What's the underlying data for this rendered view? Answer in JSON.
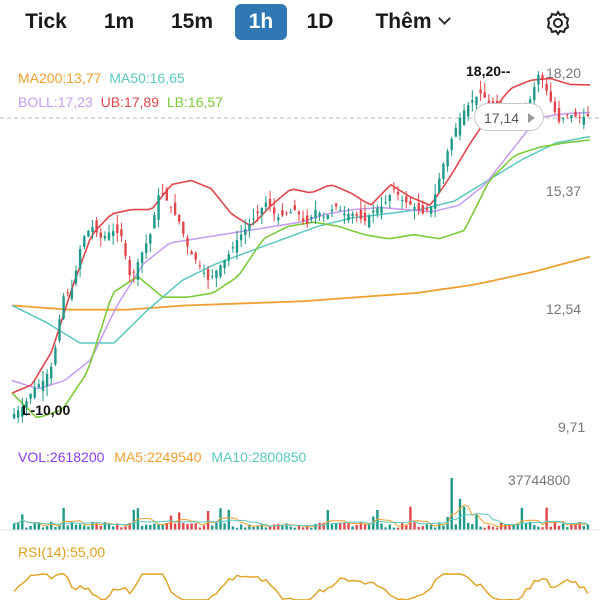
{
  "tabs": [
    {
      "label": "Tick",
      "active": false
    },
    {
      "label": "1m",
      "active": false
    },
    {
      "label": "15m",
      "active": false
    },
    {
      "label": "1h",
      "active": true
    },
    {
      "label": "1D",
      "active": false
    },
    {
      "label": "Thêm",
      "active": false
    }
  ],
  "icons": {
    "settings": "gear-icon",
    "more": "chevron-down-icon"
  },
  "legend_main": {
    "ma200": "MA200:13,77",
    "ma50": "MA50:16,65",
    "boll": "BOLL:17,23",
    "ub": "UB:17,89",
    "lb": "LB:16,57"
  },
  "legend_vol": {
    "vol": "VOL:2618200",
    "ma5": "MA5:2249540",
    "ma10": "MA10:2800850"
  },
  "legend_rsi": {
    "rsi": "RSI(14):55,00"
  },
  "current_price": "17,14",
  "high_label": "18,20",
  "low_label": "10,00",
  "colors": {
    "ma200": "#f0a030",
    "ma50": "#5bc8c0",
    "boll": "#c59cf2",
    "ub": "#e0474c",
    "lb": "#7dcb3c",
    "up": "#1f9a8a",
    "down": "#e0474c",
    "vol": "#8a3cf0",
    "active_tab": "#2f78b3"
  },
  "chart_data": {
    "type": "candlestick",
    "price_axis_ticks": [
      "18,20",
      "15,37",
      "12,54",
      "9,71"
    ],
    "price_axis_values": [
      18.2,
      15.37,
      12.54,
      9.71
    ],
    "volume_axis_ticks": [
      "37744800"
    ],
    "volume_axis_values": [
      37744800
    ],
    "ylim": [
      9.71,
      18.2
    ],
    "close_path": [
      10.0,
      10.2,
      10.6,
      10.8,
      11.2,
      12.8,
      13.0,
      14.2,
      14.5,
      14.2,
      14.4,
      14.3,
      13.2,
      13.8,
      14.3,
      15.4,
      15.0,
      14.6,
      13.9,
      13.6,
      13.2,
      13.5,
      13.8,
      14.2,
      14.5,
      14.8,
      15.1,
      14.7,
      14.8,
      14.9,
      14.5,
      14.9,
      14.7,
      15.0,
      14.8,
      14.8,
      14.6,
      14.9,
      15.0,
      15.4,
      15.1,
      15.0,
      14.8,
      15.0,
      15.9,
      16.6,
      17.2,
      17.5,
      17.7,
      17.4,
      17.2,
      17.1,
      17.2,
      17.5,
      18.2,
      17.6,
      17.0,
      17.2,
      17.1,
      17.14
    ],
    "ub_path": [
      10.5,
      10.7,
      11.5,
      13.0,
      14.3,
      14.8,
      14.9,
      14.9,
      15.5,
      15.6,
      15.4,
      14.8,
      14.5,
      15.0,
      15.4,
      15.3,
      15.5,
      15.3,
      15.0,
      15.5,
      15.2,
      15.0,
      15.7,
      16.5,
      17.2,
      17.8,
      18.0,
      18.05,
      17.9,
      17.89
    ],
    "boll_path": [
      10.8,
      10.6,
      10.8,
      11.3,
      12.6,
      13.6,
      14.1,
      14.2,
      14.3,
      14.4,
      14.5,
      14.6,
      14.8,
      14.9,
      14.95,
      14.9,
      14.85,
      15.0,
      15.5,
      16.3,
      17.1,
      17.2,
      17.23
    ],
    "lb_path": [
      10.5,
      9.9,
      10.1,
      11.0,
      12.9,
      13.3,
      12.8,
      12.8,
      12.9,
      13.3,
      14.2,
      14.5,
      14.6,
      14.5,
      14.3,
      14.2,
      14.3,
      14.2,
      14.4,
      15.6,
      16.2,
      16.4,
      16.5,
      16.57
    ],
    "ma50_path": [
      12.6,
      12.2,
      11.7,
      11.7,
      12.5,
      13.2,
      13.6,
      13.9,
      14.2,
      14.5,
      14.7,
      14.8,
      14.9,
      15.1,
      15.6,
      16.1,
      16.5,
      16.65
    ],
    "ma200_path": [
      12.6,
      12.5,
      12.5,
      12.6,
      12.65,
      12.7,
      12.8,
      12.9,
      13.1,
      13.4,
      13.77
    ],
    "volume_peak": 37744800
  }
}
